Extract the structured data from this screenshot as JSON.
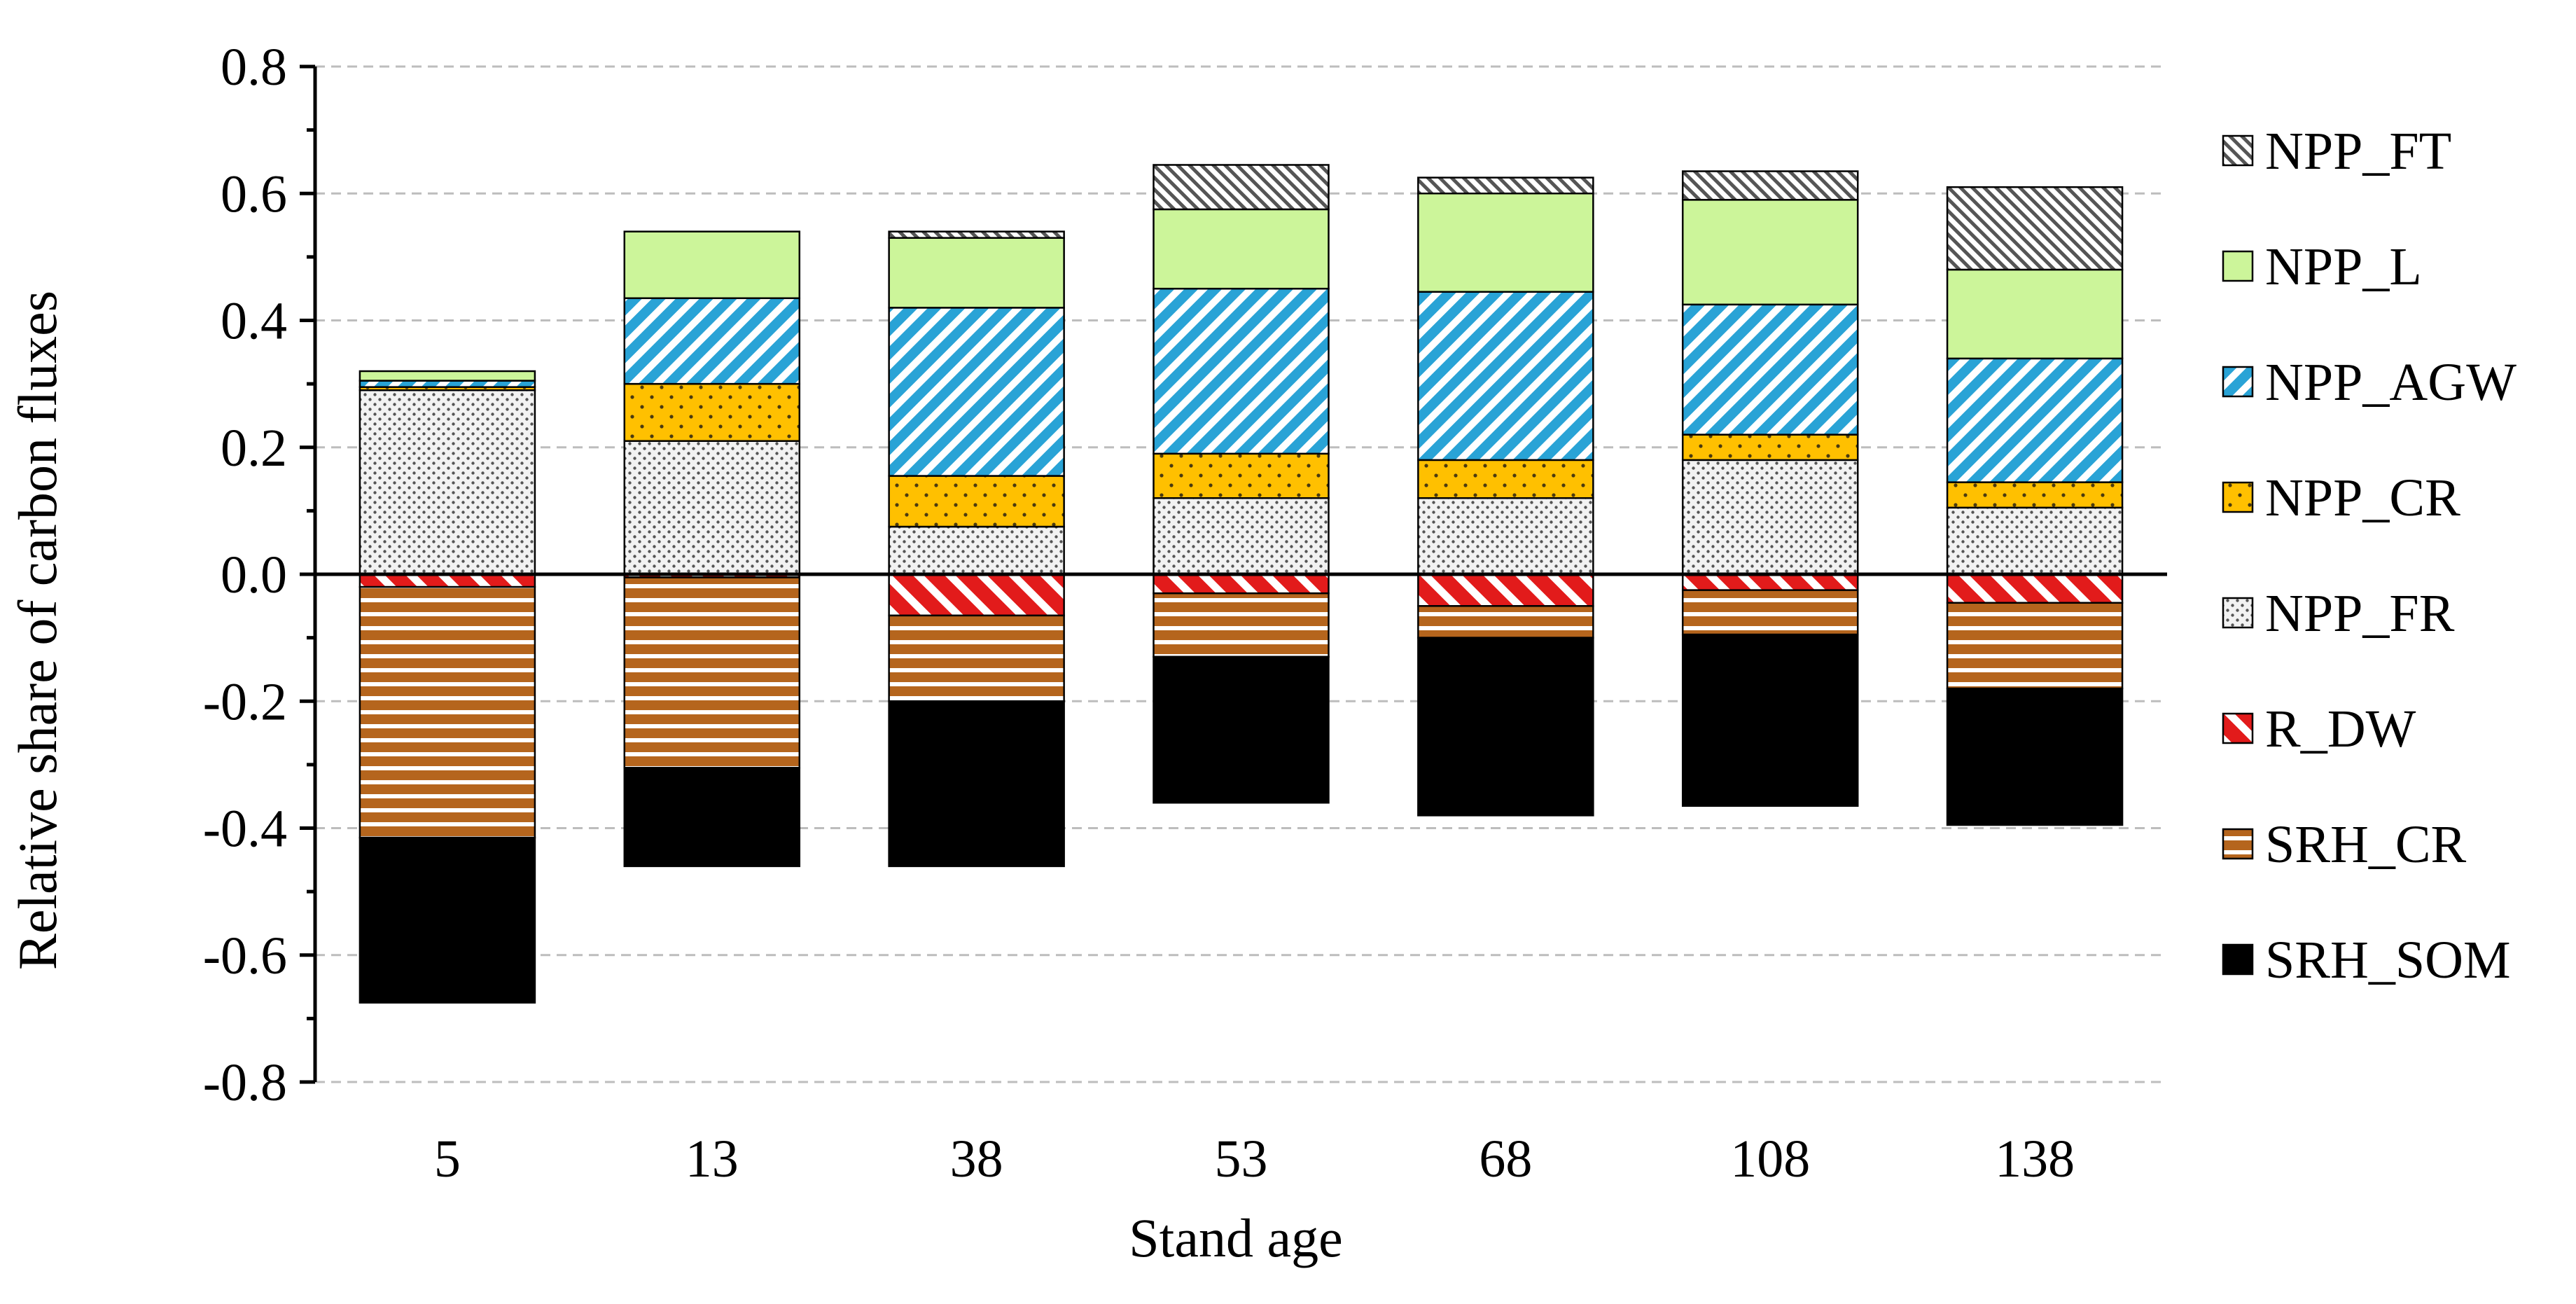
{
  "chart_data": {
    "type": "bar",
    "stacked": true,
    "title": "",
    "xlabel": "Stand age",
    "ylabel": "Relative share of carbon fluxes",
    "ylim": [
      -0.8,
      0.8
    ],
    "ytick_step": 0.2,
    "yticks": [
      "0.8",
      "0.6",
      "0.4",
      "0.2",
      "0.0",
      "-0.2",
      "-0.4",
      "-0.6",
      "-0.8"
    ],
    "grid": true,
    "legend_position": "right",
    "categories": [
      "5",
      "13",
      "38",
      "53",
      "68",
      "108",
      "138"
    ],
    "series": [
      {
        "name": "NPP_FR",
        "direction": "positive",
        "pattern": "dots-gray",
        "values": [
          0.29,
          0.21,
          0.075,
          0.12,
          0.12,
          0.18,
          0.105
        ]
      },
      {
        "name": "NPP_CR",
        "direction": "positive",
        "pattern": "dots-orange",
        "values": [
          0.005,
          0.09,
          0.08,
          0.07,
          0.06,
          0.04,
          0.04
        ]
      },
      {
        "name": "NPP_AGW",
        "direction": "positive",
        "pattern": "diag-blue",
        "values": [
          0.01,
          0.135,
          0.265,
          0.26,
          0.265,
          0.205,
          0.195
        ]
      },
      {
        "name": "NPP_L",
        "direction": "positive",
        "pattern": "solid-green",
        "values": [
          0.015,
          0.105,
          0.11,
          0.125,
          0.155,
          0.165,
          0.14
        ]
      },
      {
        "name": "NPP_FT",
        "direction": "positive",
        "pattern": "diag-gray",
        "values": [
          0.0,
          0.0,
          0.01,
          0.07,
          0.025,
          0.045,
          0.13
        ]
      },
      {
        "name": "R_DW",
        "direction": "negative",
        "pattern": "diag-red",
        "values": [
          -0.02,
          -0.005,
          -0.065,
          -0.03,
          -0.05,
          -0.025,
          -0.045
        ]
      },
      {
        "name": "SRH_CR",
        "direction": "negative",
        "pattern": "stripes-brown",
        "values": [
          -0.395,
          -0.3,
          -0.135,
          -0.1,
          -0.05,
          -0.07,
          -0.135
        ]
      },
      {
        "name": "SRH_SOM",
        "direction": "negative",
        "pattern": "solid-black",
        "values": [
          -0.26,
          -0.155,
          -0.26,
          -0.23,
          -0.28,
          -0.27,
          -0.215
        ]
      }
    ],
    "legend": [
      "NPP_FT",
      "NPP_L",
      "NPP_AGW",
      "NPP_CR",
      "NPP_FR",
      "R_DW",
      "SRH_CR",
      "SRH_SOM"
    ],
    "colors": {
      "NPP_FT": "#ffffff",
      "NPP_L": "#ccf59a",
      "NPP_AGW": "#29a3d6",
      "NPP_CR": "#ffc000",
      "NPP_FR": "#ffffff",
      "R_DW": "#e21b1b",
      "SRH_CR": "#b5651d",
      "SRH_SOM": "#000000"
    }
  }
}
